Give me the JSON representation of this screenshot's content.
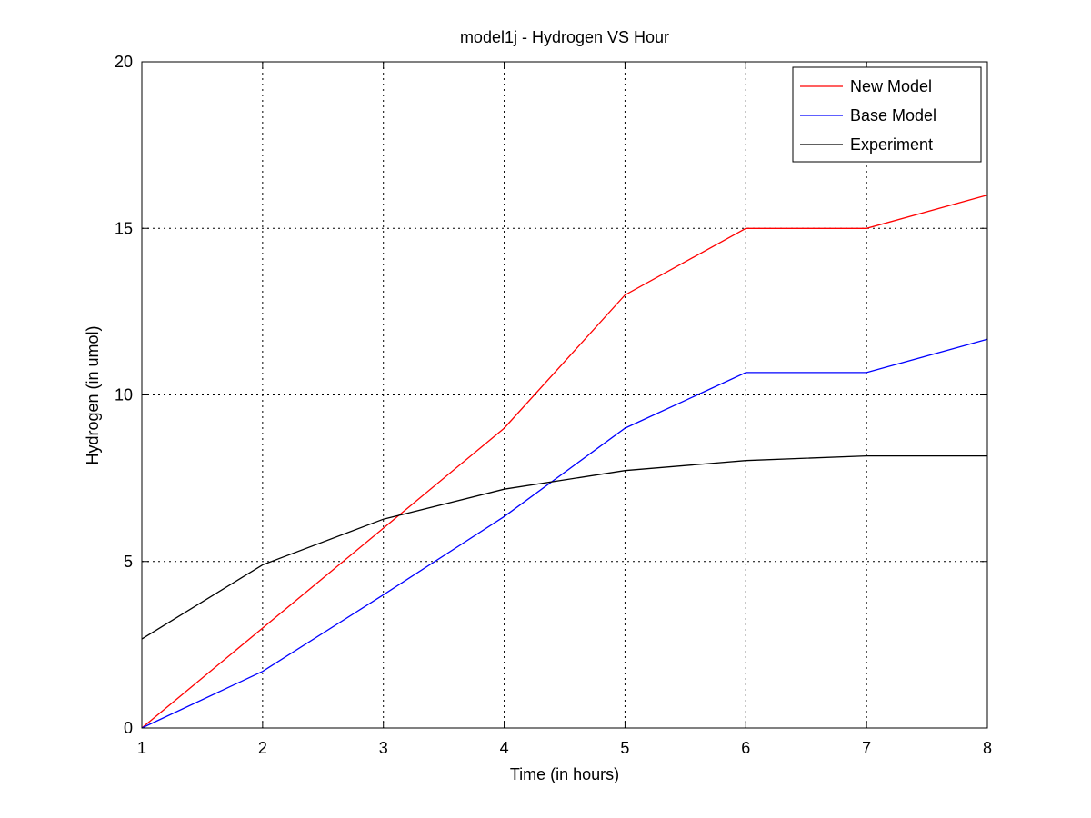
{
  "chart_data": {
    "type": "line",
    "title": "model1j - Hydrogen VS Hour",
    "xlabel": "Time (in hours)",
    "ylabel": "Hydrogen (in umol)",
    "xlim": [
      1,
      8
    ],
    "ylim": [
      0,
      20
    ],
    "xticks": [
      1,
      2,
      3,
      4,
      5,
      6,
      7,
      8
    ],
    "yticks": [
      0,
      5,
      10,
      15,
      20
    ],
    "grid": true,
    "legend_position": "top-right",
    "x": [
      1,
      2,
      3,
      4,
      5,
      6,
      7,
      8
    ],
    "series": [
      {
        "name": "New Model",
        "color": "#ff0000",
        "values": [
          0,
          3,
          6,
          9,
          13,
          15,
          15,
          16
        ]
      },
      {
        "name": "Base Model",
        "color": "#0000ff",
        "values": [
          0,
          1.7,
          4.0,
          6.35,
          9.0,
          10.67,
          10.67,
          11.67
        ]
      },
      {
        "name": "Experiment",
        "color": "#000000",
        "values": [
          2.67,
          4.9,
          6.27,
          7.17,
          7.73,
          8.03,
          8.17,
          8.17
        ]
      }
    ]
  }
}
